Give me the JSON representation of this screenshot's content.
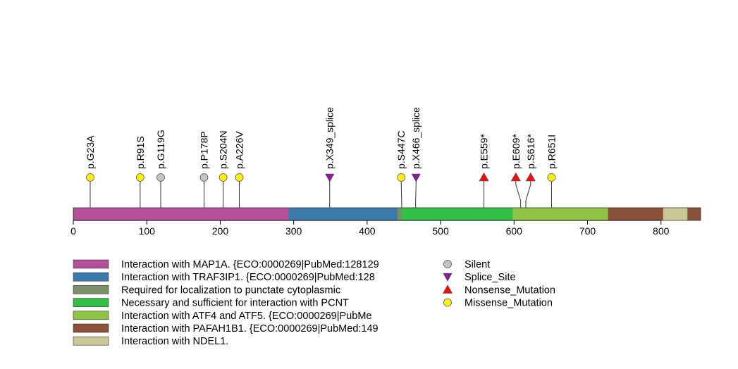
{
  "chart_data": {
    "type": "lollipop",
    "protein_length": 854,
    "xlim": [
      0,
      854
    ],
    "x_ticks": [
      0,
      100,
      200,
      300,
      400,
      500,
      600,
      700,
      800
    ],
    "domains": [
      {
        "label": "Interaction with MAP1A. {ECO:0000269|PubMed:128129",
        "start": 1,
        "end": 293,
        "color": "#b5519b"
      },
      {
        "label": "Interaction with TRAF3IP1. {ECO:0000269|PubMed:128",
        "start": 293,
        "end": 441,
        "color": "#3a7bab"
      },
      {
        "label": "Required for localization to punctate cytoplasmic",
        "start": 441,
        "end": 447,
        "color": "#7a9068"
      },
      {
        "label": "Necessary and sufficient for interaction with PCNT",
        "start": 447,
        "end": 598,
        "color": "#35be45"
      },
      {
        "label": "Interaction with ATF4 and ATF5. {ECO:0000269|PubMe",
        "start": 598,
        "end": 728,
        "color": "#8ec346"
      },
      {
        "label": "Interaction with PAFAH1B1. {ECO:0000269|PubMed:149",
        "start": 728,
        "end": 803,
        "color": "#8b5138"
      },
      {
        "label": "Interaction with NDEL1.",
        "start": 803,
        "end": 836,
        "color": "#c9c795"
      }
    ],
    "mutation_types": [
      {
        "name": "Silent",
        "shape": "circle",
        "color": "#c4c4c4"
      },
      {
        "name": "Splice_Site",
        "shape": "triangle-down",
        "color": "#8b1a9e"
      },
      {
        "name": "Nonsense_Mutation",
        "shape": "triangle-up",
        "color": "#ee1111"
      },
      {
        "name": "Missense_Mutation",
        "shape": "circle",
        "color": "#ffee11"
      }
    ],
    "mutations": [
      {
        "label": "p.G23A",
        "position": 23,
        "type": "Missense_Mutation"
      },
      {
        "label": "p.R91S",
        "position": 91,
        "type": "Missense_Mutation"
      },
      {
        "label": "p.G119G",
        "position": 119,
        "type": "Silent"
      },
      {
        "label": "p.P178P",
        "position": 178,
        "type": "Silent"
      },
      {
        "label": "p.S204N",
        "position": 204,
        "type": "Missense_Mutation"
      },
      {
        "label": "p.A226V",
        "position": 226,
        "type": "Missense_Mutation"
      },
      {
        "label": "p.X349_splice",
        "position": 349,
        "type": "Splice_Site"
      },
      {
        "label": "p.S447C",
        "position": 447,
        "type": "Missense_Mutation"
      },
      {
        "label": "p.X466_splice",
        "position": 466,
        "type": "Splice_Site"
      },
      {
        "label": "p.E559*",
        "position": 559,
        "type": "Nonsense_Mutation"
      },
      {
        "label": "p.E609*",
        "position": 609,
        "type": "Nonsense_Mutation"
      },
      {
        "label": "p.S616*",
        "position": 616,
        "type": "Nonsense_Mutation"
      },
      {
        "label": "p.R651I",
        "position": 651,
        "type": "Missense_Mutation"
      }
    ]
  }
}
